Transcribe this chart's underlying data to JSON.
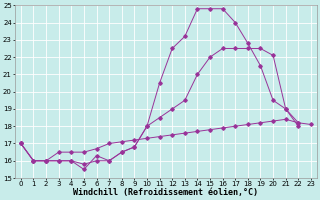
{
  "bg_color": "#c8ecea",
  "line_color": "#993399",
  "grid_color": "#ffffff",
  "xlabel": "Windchill (Refroidissement éolien,°C)",
  "xmin": 0,
  "xmax": 23,
  "ymin": 15,
  "ymax": 25,
  "yticks": [
    15,
    16,
    17,
    18,
    19,
    20,
    21,
    22,
    23,
    24,
    25
  ],
  "line_spike_x": [
    0,
    1,
    2,
    3,
    4,
    5,
    6,
    7,
    8,
    9,
    10,
    11,
    12,
    13,
    14,
    15,
    16,
    17,
    18,
    19,
    20,
    21,
    22
  ],
  "line_spike_y": [
    17,
    16,
    16,
    16,
    16,
    15.5,
    16.3,
    16.0,
    16.5,
    16.8,
    18.0,
    20.5,
    22.5,
    23.2,
    24.8,
    24.8,
    24.8,
    24.0,
    22.8,
    21.5,
    19.5,
    19.0,
    18.0
  ],
  "line_mid_x": [
    0,
    1,
    2,
    3,
    4,
    5,
    6,
    7,
    8,
    9,
    10,
    11,
    12,
    13,
    14,
    15,
    16,
    17,
    18,
    19,
    20,
    21,
    22
  ],
  "line_mid_y": [
    17,
    16,
    16,
    16,
    16,
    15.8,
    16.0,
    16.0,
    16.5,
    16.8,
    18.0,
    18.5,
    19.0,
    19.5,
    21.0,
    22.0,
    22.5,
    22.5,
    22.5,
    22.5,
    22.1,
    19.0,
    18.2
  ],
  "line_flat_x": [
    0,
    1,
    2,
    3,
    4,
    5,
    6,
    7,
    8,
    9,
    10,
    11,
    12,
    13,
    14,
    15,
    16,
    17,
    18,
    19,
    20,
    21,
    22,
    23
  ],
  "line_flat_y": [
    17,
    16,
    16,
    16.5,
    16.5,
    16.5,
    16.7,
    17.0,
    17.1,
    17.2,
    17.3,
    17.4,
    17.5,
    17.6,
    17.7,
    17.8,
    17.9,
    18.0,
    18.1,
    18.2,
    18.3,
    18.4,
    18.2,
    18.1
  ]
}
